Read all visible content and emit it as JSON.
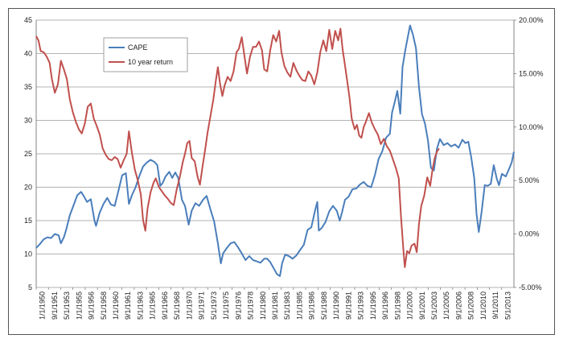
{
  "chart_data": {
    "type": "line",
    "title": "",
    "xlabel": "",
    "ylabel": "",
    "y_left_lim": [
      5,
      45
    ],
    "y_left_ticks": [
      "5",
      "10",
      "15",
      "20",
      "25",
      "30",
      "35",
      "40",
      "45"
    ],
    "y_right_lim": [
      -5,
      20
    ],
    "y_right_ticks": [
      "-5.00%",
      "0.00%",
      "5.00%",
      "10.00%",
      "15.00%",
      "20.00%"
    ],
    "x_tick_labels": [
      "1/1/1950",
      "9/1/1951",
      "5/1/1953",
      "1/1/1955",
      "9/1/1956",
      "5/1/1958",
      "1/1/1960",
      "9/1/1961",
      "5/1/1963",
      "1/1/1965",
      "9/1/1966",
      "5/1/1968",
      "1/1/1970",
      "9/1/1971",
      "5/1/1973",
      "1/1/1975",
      "9/1/1976",
      "5/1/1978",
      "1/1/1980",
      "9/1/1981",
      "5/1/1983",
      "1/1/1985",
      "9/1/1986",
      "5/1/1988",
      "1/1/1990",
      "9/1/1991",
      "5/1/1993",
      "1/1/1995",
      "9/1/1996",
      "5/1/1998",
      "1/1/2000",
      "9/1/2001",
      "5/1/2003",
      "1/1/2005",
      "9/1/2006",
      "5/1/2008",
      "1/1/2010",
      "9/1/2011",
      "5/1/2013"
    ],
    "x_range": [
      1950.0,
      2013.9
    ],
    "grid": true,
    "legend_placement": "top-left",
    "series": [
      {
        "name": "CAPE",
        "axis": "left",
        "color": "#4a7ebb",
        "points": [
          [
            1950.0,
            10.9
          ],
          [
            1950.5,
            11.5
          ],
          [
            1951.0,
            12.2
          ],
          [
            1951.5,
            12.5
          ],
          [
            1952.0,
            12.4
          ],
          [
            1952.5,
            13.0
          ],
          [
            1953.0,
            12.8
          ],
          [
            1953.3,
            11.6
          ],
          [
            1953.7,
            12.5
          ],
          [
            1954.0,
            13.6
          ],
          [
            1954.5,
            15.8
          ],
          [
            1955.0,
            17.3
          ],
          [
            1955.5,
            18.8
          ],
          [
            1956.0,
            19.3
          ],
          [
            1956.4,
            18.6
          ],
          [
            1956.8,
            17.8
          ],
          [
            1957.3,
            18.2
          ],
          [
            1957.8,
            15.0
          ],
          [
            1958.0,
            14.2
          ],
          [
            1958.5,
            16.2
          ],
          [
            1959.0,
            17.5
          ],
          [
            1959.5,
            18.4
          ],
          [
            1960.0,
            17.4
          ],
          [
            1960.5,
            17.2
          ],
          [
            1961.0,
            19.5
          ],
          [
            1961.5,
            21.8
          ],
          [
            1962.0,
            22.1
          ],
          [
            1962.4,
            17.5
          ],
          [
            1962.8,
            18.8
          ],
          [
            1963.3,
            20.0
          ],
          [
            1963.8,
            21.7
          ],
          [
            1964.3,
            23.1
          ],
          [
            1964.8,
            23.7
          ],
          [
            1965.3,
            24.1
          ],
          [
            1965.8,
            23.8
          ],
          [
            1966.2,
            23.3
          ],
          [
            1966.6,
            20.2
          ],
          [
            1966.9,
            20.6
          ],
          [
            1967.3,
            21.6
          ],
          [
            1967.8,
            22.3
          ],
          [
            1968.2,
            21.4
          ],
          [
            1968.6,
            22.2
          ],
          [
            1969.0,
            21.4
          ],
          [
            1969.5,
            18.1
          ],
          [
            1969.9,
            17.2
          ],
          [
            1970.4,
            14.4
          ],
          [
            1970.8,
            16.5
          ],
          [
            1971.3,
            17.6
          ],
          [
            1971.8,
            17.2
          ],
          [
            1972.3,
            18.1
          ],
          [
            1972.8,
            18.7
          ],
          [
            1973.3,
            16.7
          ],
          [
            1973.8,
            14.9
          ],
          [
            1974.3,
            11.6
          ],
          [
            1974.7,
            8.6
          ],
          [
            1975.0,
            10.1
          ],
          [
            1975.5,
            10.9
          ],
          [
            1976.0,
            11.6
          ],
          [
            1976.5,
            11.8
          ],
          [
            1977.0,
            11.0
          ],
          [
            1977.5,
            10.1
          ],
          [
            1978.0,
            9.1
          ],
          [
            1978.5,
            9.7
          ],
          [
            1979.0,
            9.1
          ],
          [
            1979.5,
            8.9
          ],
          [
            1980.0,
            8.7
          ],
          [
            1980.5,
            9.3
          ],
          [
            1980.9,
            9.3
          ],
          [
            1981.3,
            8.8
          ],
          [
            1981.8,
            7.8
          ],
          [
            1982.2,
            7.0
          ],
          [
            1982.6,
            6.7
          ],
          [
            1982.9,
            8.6
          ],
          [
            1983.3,
            9.9
          ],
          [
            1983.8,
            9.7
          ],
          [
            1984.3,
            9.3
          ],
          [
            1984.8,
            9.8
          ],
          [
            1985.3,
            10.6
          ],
          [
            1985.8,
            11.4
          ],
          [
            1986.3,
            13.6
          ],
          [
            1986.8,
            14.0
          ],
          [
            1987.3,
            16.5
          ],
          [
            1987.6,
            17.8
          ],
          [
            1987.8,
            13.5
          ],
          [
            1988.2,
            13.9
          ],
          [
            1988.7,
            14.8
          ],
          [
            1989.2,
            16.4
          ],
          [
            1989.7,
            17.2
          ],
          [
            1990.2,
            16.5
          ],
          [
            1990.6,
            15.0
          ],
          [
            1990.9,
            16.2
          ],
          [
            1991.3,
            18.1
          ],
          [
            1991.8,
            18.6
          ],
          [
            1992.3,
            19.7
          ],
          [
            1992.8,
            19.8
          ],
          [
            1993.3,
            20.4
          ],
          [
            1993.8,
            20.8
          ],
          [
            1994.3,
            20.2
          ],
          [
            1994.8,
            20.0
          ],
          [
            1995.3,
            21.8
          ],
          [
            1995.8,
            24.2
          ],
          [
            1996.3,
            25.4
          ],
          [
            1996.8,
            27.4
          ],
          [
            1997.3,
            28.0
          ],
          [
            1997.6,
            31.2
          ],
          [
            1997.9,
            32.5
          ],
          [
            1998.3,
            34.4
          ],
          [
            1998.7,
            31.0
          ],
          [
            1999.0,
            38.0
          ],
          [
            1999.4,
            40.7
          ],
          [
            1999.8,
            43.0
          ],
          [
            2000.0,
            44.2
          ],
          [
            2000.4,
            42.8
          ],
          [
            2000.8,
            40.8
          ],
          [
            2001.2,
            35.0
          ],
          [
            2001.6,
            30.9
          ],
          [
            2002.0,
            29.5
          ],
          [
            2002.4,
            27.0
          ],
          [
            2002.8,
            22.9
          ],
          [
            2003.2,
            22.5
          ],
          [
            2003.6,
            25.8
          ],
          [
            2004.0,
            27.2
          ],
          [
            2004.5,
            26.3
          ],
          [
            2005.0,
            26.6
          ],
          [
            2005.5,
            26.1
          ],
          [
            2006.0,
            26.4
          ],
          [
            2006.5,
            25.9
          ],
          [
            2007.0,
            27.1
          ],
          [
            2007.4,
            26.6
          ],
          [
            2007.8,
            26.8
          ],
          [
            2008.2,
            24.4
          ],
          [
            2008.6,
            21.3
          ],
          [
            2008.9,
            16.0
          ],
          [
            2009.2,
            13.3
          ],
          [
            2009.6,
            16.5
          ],
          [
            2010.0,
            20.3
          ],
          [
            2010.4,
            20.2
          ],
          [
            2010.8,
            20.5
          ],
          [
            2011.2,
            23.3
          ],
          [
            2011.6,
            21.3
          ],
          [
            2011.9,
            20.3
          ],
          [
            2012.3,
            22.0
          ],
          [
            2012.8,
            21.6
          ],
          [
            2013.2,
            22.6
          ],
          [
            2013.6,
            23.7
          ],
          [
            2013.9,
            25.3
          ]
        ]
      },
      {
        "name": "10 year return",
        "axis": "right",
        "color": "#c0504d",
        "points": [
          [
            1950.0,
            18.5
          ],
          [
            1950.3,
            18.1
          ],
          [
            1950.6,
            17.1
          ],
          [
            1951.0,
            17.0
          ],
          [
            1951.4,
            16.6
          ],
          [
            1951.8,
            16.0
          ],
          [
            1952.1,
            14.5
          ],
          [
            1952.5,
            13.2
          ],
          [
            1952.9,
            14.0
          ],
          [
            1953.3,
            16.2
          ],
          [
            1953.7,
            15.4
          ],
          [
            1954.1,
            14.5
          ],
          [
            1954.5,
            12.6
          ],
          [
            1954.9,
            11.4
          ],
          [
            1955.3,
            10.5
          ],
          [
            1955.7,
            9.8
          ],
          [
            1956.1,
            9.4
          ],
          [
            1956.5,
            10.3
          ],
          [
            1956.9,
            11.9
          ],
          [
            1957.3,
            12.2
          ],
          [
            1957.7,
            10.8
          ],
          [
            1958.1,
            10.1
          ],
          [
            1958.5,
            9.3
          ],
          [
            1958.9,
            8.0
          ],
          [
            1959.3,
            7.4
          ],
          [
            1959.7,
            7.0
          ],
          [
            1960.1,
            6.9
          ],
          [
            1960.5,
            7.2
          ],
          [
            1960.9,
            7.0
          ],
          [
            1961.3,
            6.2
          ],
          [
            1961.7,
            6.9
          ],
          [
            1962.1,
            7.5
          ],
          [
            1962.4,
            9.6
          ],
          [
            1962.8,
            7.6
          ],
          [
            1963.2,
            6.0
          ],
          [
            1963.6,
            5.0
          ],
          [
            1964.0,
            3.7
          ],
          [
            1964.3,
            1.3
          ],
          [
            1964.6,
            0.3
          ],
          [
            1964.9,
            2.4
          ],
          [
            1965.3,
            3.9
          ],
          [
            1965.7,
            4.8
          ],
          [
            1966.0,
            5.2
          ],
          [
            1966.4,
            4.4
          ],
          [
            1966.8,
            4.0
          ],
          [
            1967.2,
            3.6
          ],
          [
            1967.6,
            3.3
          ],
          [
            1968.0,
            2.9
          ],
          [
            1968.4,
            2.7
          ],
          [
            1968.8,
            4.2
          ],
          [
            1969.2,
            5.3
          ],
          [
            1969.6,
            6.7
          ],
          [
            1969.9,
            7.5
          ],
          [
            1970.2,
            8.5
          ],
          [
            1970.5,
            8.7
          ],
          [
            1970.8,
            7.1
          ],
          [
            1971.2,
            6.8
          ],
          [
            1971.6,
            5.3
          ],
          [
            1971.9,
            4.6
          ],
          [
            1972.2,
            6.1
          ],
          [
            1972.6,
            7.9
          ],
          [
            1972.9,
            9.4
          ],
          [
            1973.3,
            11.0
          ],
          [
            1973.7,
            12.6
          ],
          [
            1974.0,
            14.2
          ],
          [
            1974.3,
            15.6
          ],
          [
            1974.6,
            14.0
          ],
          [
            1974.9,
            12.9
          ],
          [
            1975.2,
            13.9
          ],
          [
            1975.6,
            14.7
          ],
          [
            1976.0,
            14.3
          ],
          [
            1976.4,
            15.2
          ],
          [
            1976.8,
            17.0
          ],
          [
            1977.1,
            17.3
          ],
          [
            1977.5,
            18.4
          ],
          [
            1977.9,
            16.4
          ],
          [
            1978.2,
            15.0
          ],
          [
            1978.6,
            16.6
          ],
          [
            1979.0,
            17.5
          ],
          [
            1979.4,
            17.5
          ],
          [
            1979.8,
            18.0
          ],
          [
            1980.2,
            17.2
          ],
          [
            1980.5,
            15.4
          ],
          [
            1980.9,
            15.2
          ],
          [
            1981.3,
            17.2
          ],
          [
            1981.7,
            18.6
          ],
          [
            1982.1,
            18.0
          ],
          [
            1982.5,
            19.0
          ],
          [
            1982.8,
            17.0
          ],
          [
            1983.2,
            15.7
          ],
          [
            1983.6,
            15.1
          ],
          [
            1984.0,
            14.7
          ],
          [
            1984.4,
            16.0
          ],
          [
            1984.8,
            15.3
          ],
          [
            1985.2,
            14.8
          ],
          [
            1985.6,
            14.4
          ],
          [
            1986.0,
            14.3
          ],
          [
            1986.4,
            15.2
          ],
          [
            1986.8,
            14.8
          ],
          [
            1987.2,
            14.0
          ],
          [
            1987.6,
            15.1
          ],
          [
            1988.0,
            17.0
          ],
          [
            1988.4,
            18.1
          ],
          [
            1988.8,
            17.1
          ],
          [
            1989.2,
            19.1
          ],
          [
            1989.6,
            17.3
          ],
          [
            1990.0,
            19.0
          ],
          [
            1990.4,
            18.1
          ],
          [
            1990.7,
            19.2
          ],
          [
            1991.0,
            17.2
          ],
          [
            1991.3,
            15.8
          ],
          [
            1991.6,
            14.3
          ],
          [
            1991.9,
            12.8
          ],
          [
            1992.2,
            10.8
          ],
          [
            1992.6,
            9.8
          ],
          [
            1992.9,
            10.2
          ],
          [
            1993.2,
            9.2
          ],
          [
            1993.5,
            9.0
          ],
          [
            1993.8,
            10.0
          ],
          [
            1994.1,
            10.5
          ],
          [
            1994.5,
            11.3
          ],
          [
            1994.9,
            10.4
          ],
          [
            1995.3,
            9.8
          ],
          [
            1995.7,
            9.3
          ],
          [
            1996.1,
            8.4
          ],
          [
            1996.5,
            8.9
          ],
          [
            1996.9,
            8.2
          ],
          [
            1997.3,
            7.8
          ],
          [
            1997.7,
            7.0
          ],
          [
            1998.1,
            6.2
          ],
          [
            1998.5,
            5.2
          ],
          [
            1998.8,
            1.6
          ],
          [
            1999.1,
            -1.3
          ],
          [
            1999.3,
            -3.1
          ],
          [
            1999.6,
            -1.6
          ],
          [
            1999.9,
            -1.8
          ],
          [
            2000.2,
            -1.1
          ],
          [
            2000.6,
            -0.9
          ],
          [
            2000.9,
            -1.7
          ],
          [
            2001.2,
            0.9
          ],
          [
            2001.5,
            2.6
          ],
          [
            2001.9,
            3.6
          ],
          [
            2002.3,
            5.3
          ],
          [
            2002.7,
            4.5
          ],
          [
            2003.0,
            6.0
          ],
          [
            2003.3,
            7.1
          ],
          [
            2003.6,
            7.7
          ],
          [
            2003.9,
            8.0
          ]
        ]
      }
    ]
  }
}
